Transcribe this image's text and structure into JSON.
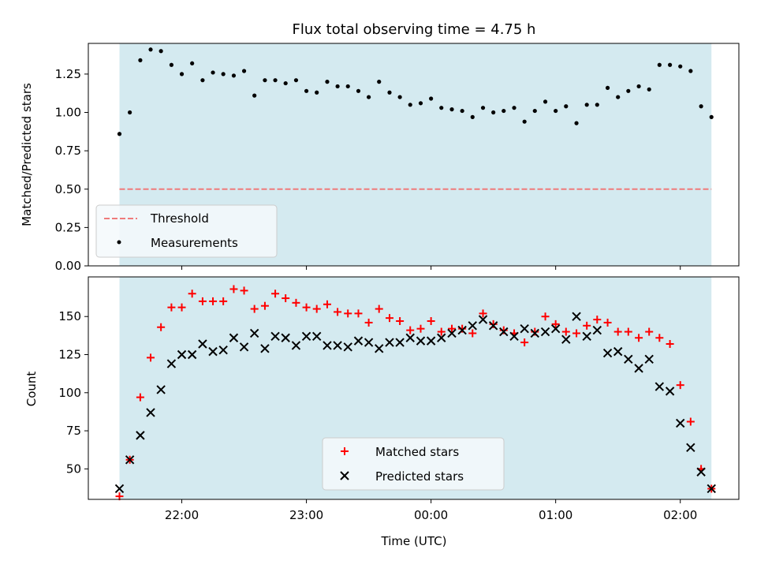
{
  "chart_data": [
    {
      "type": "scatter",
      "title": "Flux total observing time = 4.75 h",
      "xlabel": "",
      "ylabel": "Matched/Predicted stars",
      "xaxis": "time (UTC, hours since 00:00)",
      "xlim": [
        -2.75,
        2.47
      ],
      "ylim": [
        0,
        1.45
      ],
      "yticks": [
        "0.00",
        "0.25",
        "0.50",
        "0.75",
        "1.00",
        "1.25"
      ],
      "observing_window": [
        -2.5,
        2.25
      ],
      "window_color": "#d4eaf0",
      "threshold": {
        "name": "Threshold",
        "value": 0.5,
        "color": "#ef7b7b"
      },
      "legend_position": "lower left",
      "series": [
        {
          "name": "Measurements",
          "color": "#000000",
          "x": [
            -2.5,
            -2.417,
            -2.333,
            -2.25,
            -2.167,
            -2.083,
            -2.0,
            -1.917,
            -1.833,
            -1.75,
            -1.667,
            -1.583,
            -1.5,
            -1.417,
            -1.333,
            -1.25,
            -1.167,
            -1.083,
            -1.0,
            -0.917,
            -0.833,
            -0.75,
            -0.667,
            -0.583,
            -0.5,
            -0.417,
            -0.333,
            -0.25,
            -0.167,
            -0.083,
            0.0,
            0.083,
            0.167,
            0.25,
            0.333,
            0.417,
            0.5,
            0.583,
            0.667,
            0.75,
            0.833,
            0.917,
            1.0,
            1.083,
            1.167,
            1.25,
            1.333,
            1.417,
            1.5,
            1.583,
            1.667,
            1.75,
            1.833,
            1.917,
            2.0,
            2.083,
            2.167,
            2.25
          ],
          "y": [
            0.86,
            1.0,
            1.34,
            1.41,
            1.4,
            1.31,
            1.25,
            1.32,
            1.21,
            1.26,
            1.25,
            1.24,
            1.27,
            1.11,
            1.21,
            1.21,
            1.19,
            1.21,
            1.14,
            1.13,
            1.2,
            1.17,
            1.17,
            1.14,
            1.1,
            1.2,
            1.13,
            1.1,
            1.05,
            1.06,
            1.09,
            1.03,
            1.02,
            1.01,
            0.97,
            1.03,
            1.0,
            1.01,
            1.03,
            0.94,
            1.01,
            1.07,
            1.01,
            1.04,
            0.93,
            1.05,
            1.05,
            1.16,
            1.1,
            1.14,
            1.17,
            1.15,
            1.31,
            1.31,
            1.3,
            1.27,
            1.04,
            0.97
          ]
        }
      ]
    },
    {
      "type": "scatter",
      "title": "",
      "xlabel": "Time (UTC)",
      "ylabel": "Count",
      "xlim": [
        -2.75,
        2.47
      ],
      "ylim": [
        30,
        176
      ],
      "yticks": [
        "50",
        "75",
        "100",
        "125",
        "150"
      ],
      "xticks": [
        {
          "value": -2,
          "label": "22:00"
        },
        {
          "value": -1,
          "label": "23:00"
        },
        {
          "value": 0,
          "label": "00:00"
        },
        {
          "value": 1,
          "label": "01:00"
        },
        {
          "value": 2,
          "label": "02:00"
        }
      ],
      "observing_window": [
        -2.5,
        2.25
      ],
      "window_color": "#d4eaf0",
      "legend_position": "lower center",
      "series": [
        {
          "name": "Matched stars",
          "marker": "plus",
          "color": "#ff0000",
          "x": [
            -2.5,
            -2.417,
            -2.333,
            -2.25,
            -2.167,
            -2.083,
            -2.0,
            -1.917,
            -1.833,
            -1.75,
            -1.667,
            -1.583,
            -1.5,
            -1.417,
            -1.333,
            -1.25,
            -1.167,
            -1.083,
            -1.0,
            -0.917,
            -0.833,
            -0.75,
            -0.667,
            -0.583,
            -0.5,
            -0.417,
            -0.333,
            -0.25,
            -0.167,
            -0.083,
            0.0,
            0.083,
            0.167,
            0.25,
            0.333,
            0.417,
            0.5,
            0.583,
            0.667,
            0.75,
            0.833,
            0.917,
            1.0,
            1.083,
            1.167,
            1.25,
            1.333,
            1.417,
            1.5,
            1.583,
            1.667,
            1.75,
            1.833,
            1.917,
            2.0,
            2.083,
            2.167,
            2.25
          ],
          "y": [
            32,
            56,
            97,
            123,
            143,
            156,
            156,
            165,
            160,
            160,
            160,
            168,
            167,
            155,
            157,
            165,
            162,
            159,
            156,
            155,
            158,
            153,
            152,
            152,
            146,
            155,
            149,
            147,
            141,
            142,
            147,
            140,
            142,
            142,
            139,
            152,
            145,
            141,
            139,
            133,
            140,
            150,
            145,
            140,
            139,
            144,
            148,
            146,
            140,
            140,
            136,
            140,
            136,
            132,
            105,
            81,
            50,
            37
          ]
        },
        {
          "name": "Predicted stars",
          "marker": "x",
          "color": "#000000",
          "x": [
            -2.5,
            -2.417,
            -2.333,
            -2.25,
            -2.167,
            -2.083,
            -2.0,
            -1.917,
            -1.833,
            -1.75,
            -1.667,
            -1.583,
            -1.5,
            -1.417,
            -1.333,
            -1.25,
            -1.167,
            -1.083,
            -1.0,
            -0.917,
            -0.833,
            -0.75,
            -0.667,
            -0.583,
            -0.5,
            -0.417,
            -0.333,
            -0.25,
            -0.167,
            -0.083,
            0.0,
            0.083,
            0.167,
            0.25,
            0.333,
            0.417,
            0.5,
            0.583,
            0.667,
            0.75,
            0.833,
            0.917,
            1.0,
            1.083,
            1.167,
            1.25,
            1.333,
            1.417,
            1.5,
            1.583,
            1.667,
            1.75,
            1.833,
            1.917,
            2.0,
            2.083,
            2.167,
            2.25
          ],
          "y": [
            37,
            56,
            72,
            87,
            102,
            119,
            125,
            125,
            132,
            127,
            128,
            136,
            130,
            139,
            129,
            137,
            136,
            131,
            137,
            137,
            131,
            131,
            130,
            134,
            133,
            129,
            133,
            133,
            136,
            134,
            134,
            136,
            139,
            141,
            144,
            148,
            144,
            140,
            137,
            142,
            139,
            140,
            142,
            135,
            150,
            137,
            141,
            126,
            127,
            122,
            116,
            122,
            104,
            101,
            80,
            64,
            48,
            37
          ]
        }
      ]
    }
  ]
}
